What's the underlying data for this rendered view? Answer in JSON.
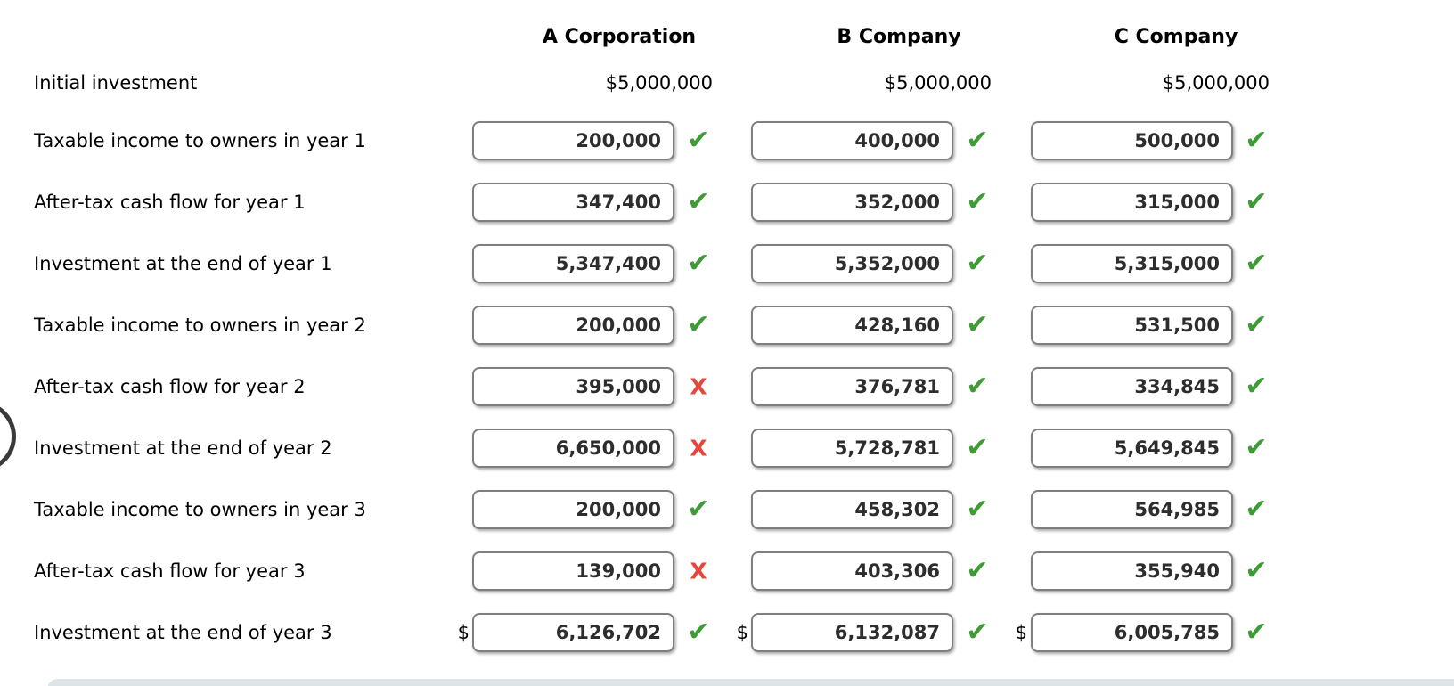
{
  "columns": [
    {
      "name": "A Corporation"
    },
    {
      "name": "B Company"
    },
    {
      "name": "C Company"
    }
  ],
  "initial_row": {
    "label": "Initial investment",
    "values": [
      "$5,000,000",
      "$5,000,000",
      "$5,000,000"
    ]
  },
  "rows": [
    {
      "label": "Taxable income to owners in year 1",
      "cells": [
        {
          "value": "200,000",
          "status": "correct"
        },
        {
          "value": "400,000",
          "status": "correct"
        },
        {
          "value": "500,000",
          "status": "correct"
        }
      ]
    },
    {
      "label": "After-tax cash flow for year 1",
      "cells": [
        {
          "value": "347,400",
          "status": "correct"
        },
        {
          "value": "352,000",
          "status": "correct"
        },
        {
          "value": "315,000",
          "status": "correct"
        }
      ]
    },
    {
      "label": "Investment at the end of year 1",
      "cells": [
        {
          "value": "5,347,400",
          "status": "correct"
        },
        {
          "value": "5,352,000",
          "status": "correct"
        },
        {
          "value": "5,315,000",
          "status": "correct"
        }
      ]
    },
    {
      "label": "Taxable income to owners in year 2",
      "cells": [
        {
          "value": "200,000",
          "status": "correct"
        },
        {
          "value": "428,160",
          "status": "correct"
        },
        {
          "value": "531,500",
          "status": "correct"
        }
      ]
    },
    {
      "label": "After-tax cash flow for year 2",
      "cells": [
        {
          "value": "395,000",
          "status": "incorrect"
        },
        {
          "value": "376,781",
          "status": "correct"
        },
        {
          "value": "334,845",
          "status": "correct"
        }
      ]
    },
    {
      "label": "Investment at the end of year 2",
      "cells": [
        {
          "value": "6,650,000",
          "status": "incorrect"
        },
        {
          "value": "5,728,781",
          "status": "correct"
        },
        {
          "value": "5,649,845",
          "status": "correct"
        }
      ]
    },
    {
      "label": "Taxable income to owners in year 3",
      "cells": [
        {
          "value": "200,000",
          "status": "correct"
        },
        {
          "value": "458,302",
          "status": "correct"
        },
        {
          "value": "564,985",
          "status": "correct"
        }
      ]
    },
    {
      "label": "After-tax cash flow for year 3",
      "cells": [
        {
          "value": "139,000",
          "status": "incorrect"
        },
        {
          "value": "403,306",
          "status": "correct"
        },
        {
          "value": "355,940",
          "status": "correct"
        }
      ]
    },
    {
      "label": "Investment at the end of year 3",
      "dollar_prefix": "$",
      "cells": [
        {
          "value": "6,126,702",
          "status": "correct"
        },
        {
          "value": "6,132,087",
          "status": "correct"
        },
        {
          "value": "6,005,785",
          "status": "correct"
        }
      ]
    }
  ],
  "icons": {
    "correct": "✔",
    "incorrect": "X"
  },
  "colors": {
    "check_green": "#3f9b35",
    "x_red": "#e8463a",
    "input_border": "#7f7f7f",
    "value_text": "#2d2d2d",
    "label_text": "#000000",
    "bottom_bar": "#dde4e8",
    "arc": "#3a3a3a"
  }
}
